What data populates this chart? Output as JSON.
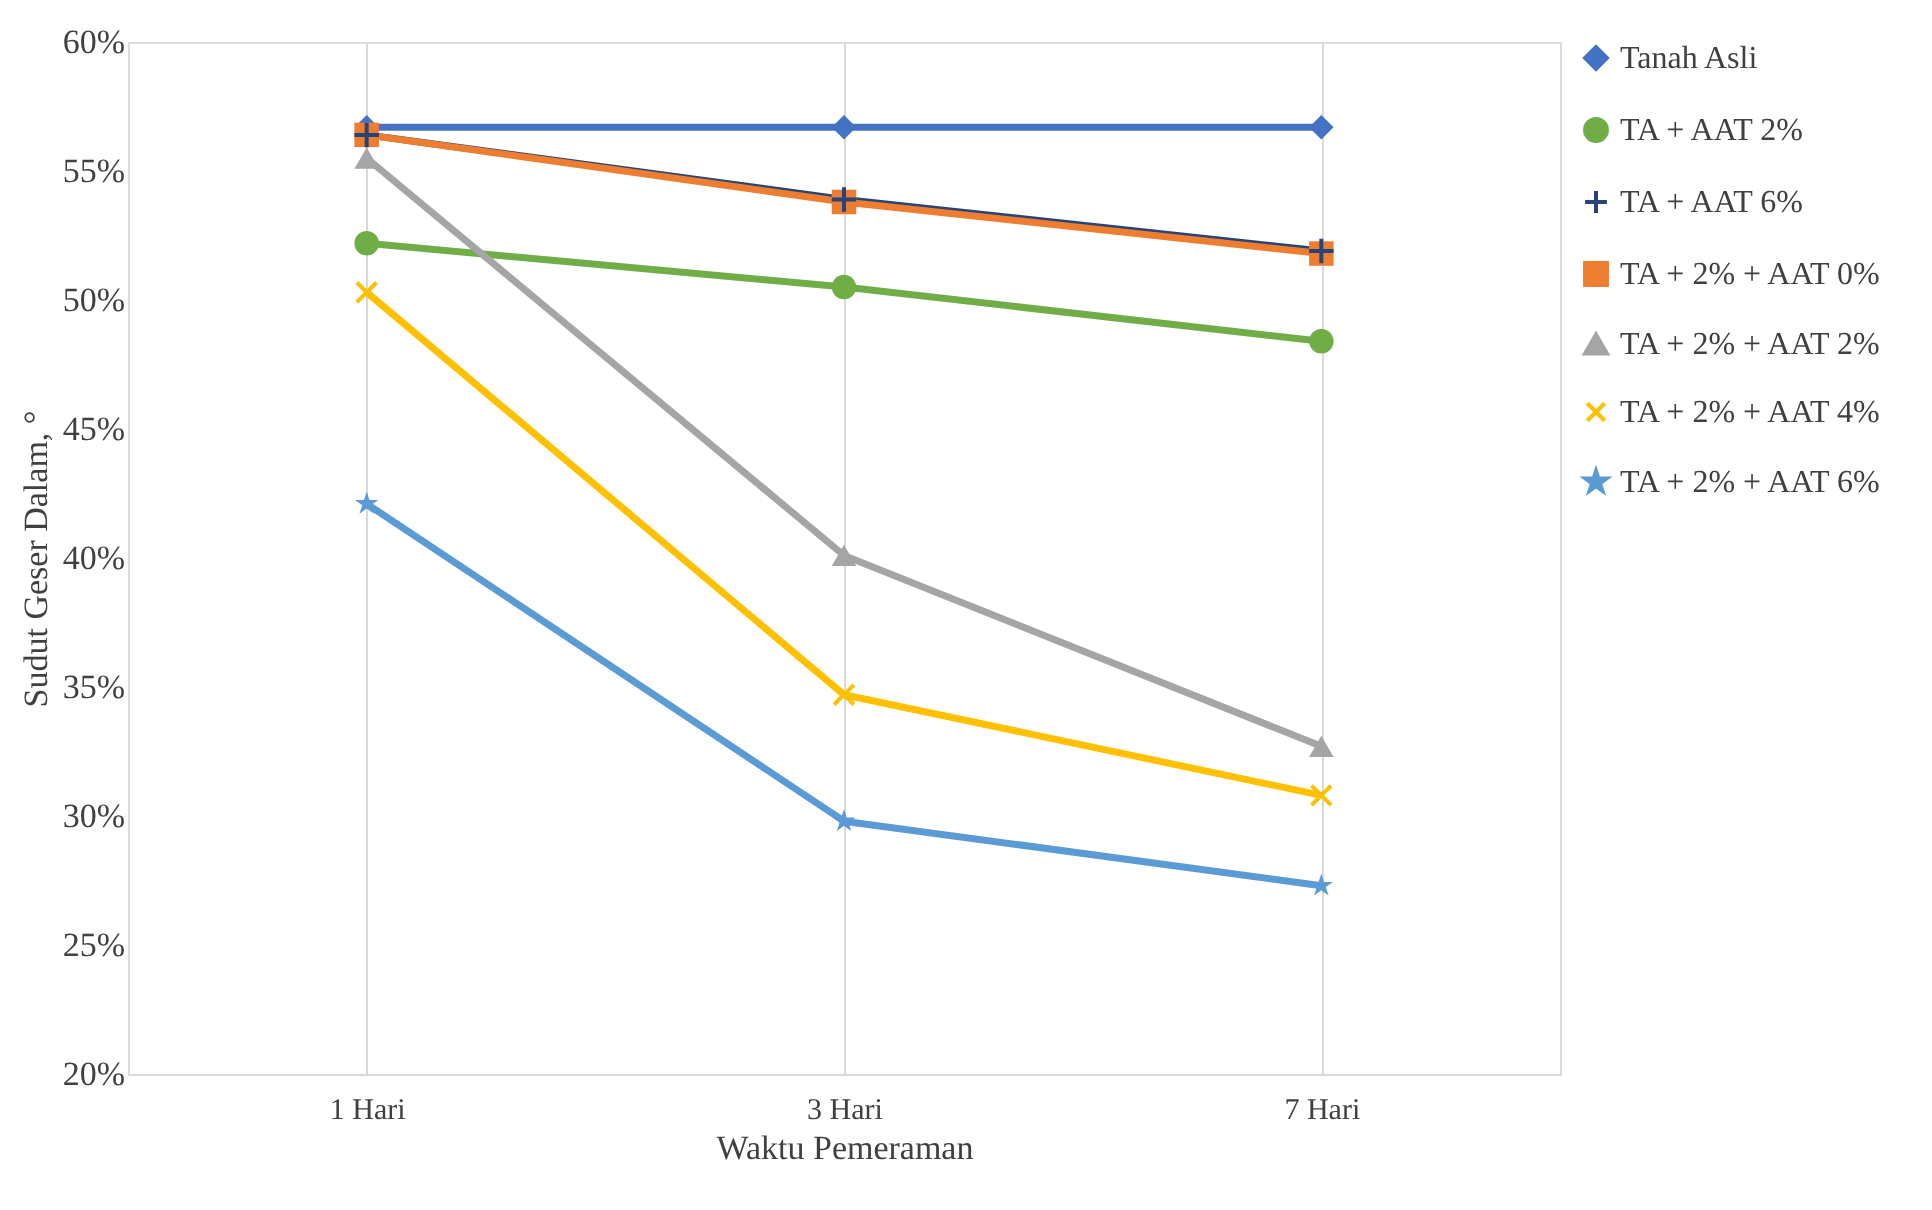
{
  "chart_data": {
    "type": "line",
    "xlabel": "Waktu Pemeraman",
    "ylabel": "Sudut Geser Dalam, °",
    "categories": [
      "1 Hari",
      "3 Hari",
      "7 Hari"
    ],
    "ylim": [
      20,
      60
    ],
    "yticks": [
      {
        "value": 20,
        "label": "20%"
      },
      {
        "value": 25,
        "label": "25%"
      },
      {
        "value": 30,
        "label": "30%"
      },
      {
        "value": 35,
        "label": "35%"
      },
      {
        "value": 40,
        "label": "40%"
      },
      {
        "value": 45,
        "label": "45%"
      },
      {
        "value": 50,
        "label": "50%"
      },
      {
        "value": 55,
        "label": "55%"
      },
      {
        "value": 60,
        "label": "60%"
      }
    ],
    "grid": "x",
    "legend": "right",
    "line_style": "solid",
    "series": [
      {
        "name": "Tanah Asli",
        "color": "#4472c4",
        "marker": "diamond",
        "values": [
          56.7,
          56.7,
          56.7
        ]
      },
      {
        "name": "TA + AAT 2%",
        "color": "#70ad47",
        "marker": "circle",
        "values": [
          52.2,
          50.5,
          48.4
        ]
      },
      {
        "name": "TA +  AAT 6%",
        "color": "#264478",
        "marker": "cross",
        "values": [
          56.4,
          53.9,
          51.9
        ]
      },
      {
        "name": "TA + 2% + AAT 0%",
        "color": "#ed7d31",
        "marker": "square",
        "values": [
          56.4,
          53.8,
          51.8
        ]
      },
      {
        "name": "TA + 2% + AAT 2%",
        "color": "#a5a5a5",
        "marker": "triangle",
        "values": [
          55.5,
          40.1,
          32.7
        ]
      },
      {
        "name": "TA + 2% + AAT 4%",
        "color": "#ffc000",
        "marker": "x",
        "values": [
          50.3,
          34.7,
          30.8
        ]
      },
      {
        "name": "TA + 2% + AAT 6%",
        "color": "#5b9bd5",
        "marker": "star",
        "values": [
          42.1,
          29.8,
          27.3
        ]
      }
    ]
  }
}
